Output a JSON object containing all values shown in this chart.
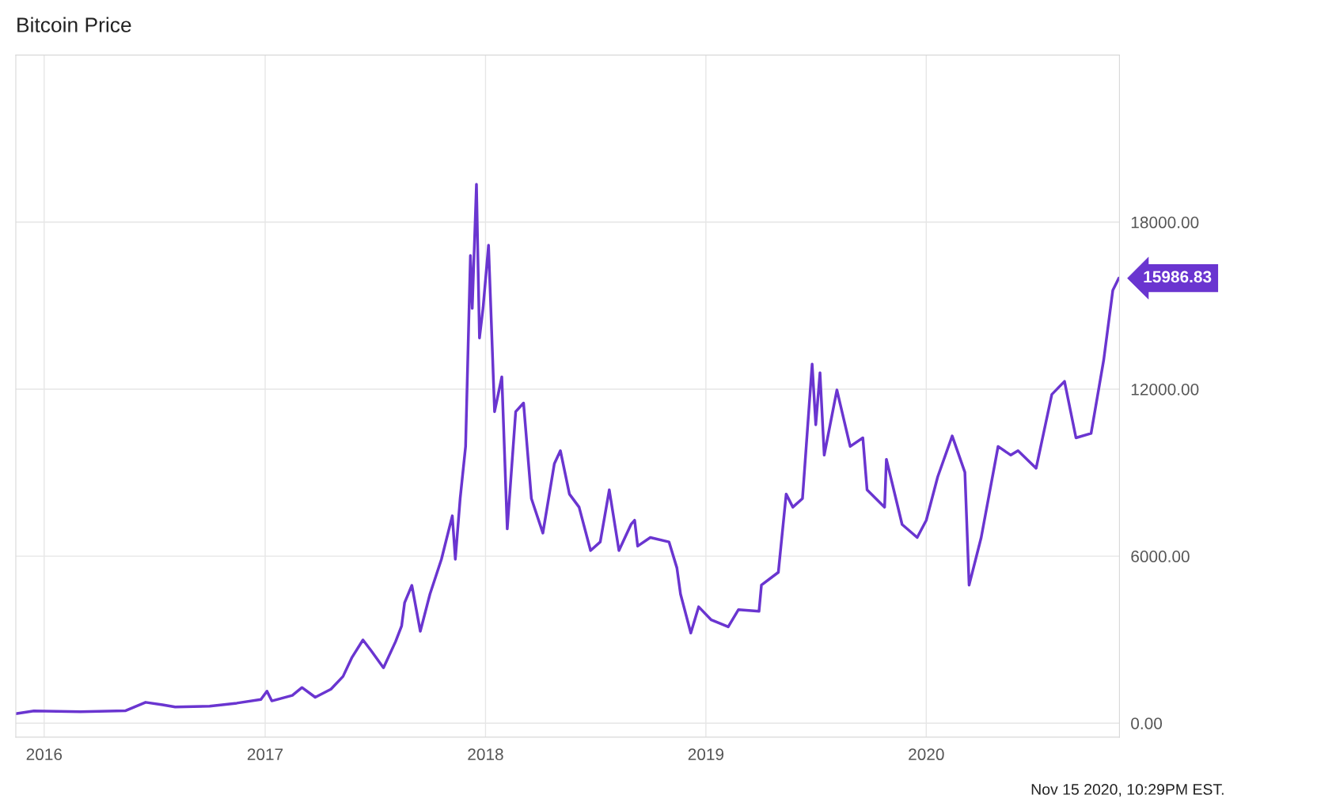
{
  "chart_data": {
    "type": "line",
    "title": "Bitcoin Price",
    "x": [
      "2015-11-15",
      "2015-12-15",
      "2016-03-01",
      "2016-05-15",
      "2016-06-17",
      "2016-07-15",
      "2016-08-05",
      "2016-10-01",
      "2016-11-15",
      "2016-12-25",
      "2017-01-04",
      "2017-01-12",
      "2017-02-15",
      "2017-03-03",
      "2017-03-25",
      "2017-04-20",
      "2017-05-10",
      "2017-05-25",
      "2017-06-12",
      "2017-06-25",
      "2017-07-16",
      "2017-08-05",
      "2017-08-15",
      "2017-08-20",
      "2017-09-01",
      "2017-09-15",
      "2017-10-01",
      "2017-10-20",
      "2017-11-07",
      "2017-11-12",
      "2017-11-20",
      "2017-11-29",
      "2017-12-07",
      "2017-12-10",
      "2017-12-17",
      "2017-12-22",
      "2017-12-28",
      "2018-01-06",
      "2018-01-16",
      "2018-01-28",
      "2018-02-06",
      "2018-02-20",
      "2018-03-05",
      "2018-03-18",
      "2018-04-06",
      "2018-04-25",
      "2018-05-05",
      "2018-05-20",
      "2018-06-05",
      "2018-06-24",
      "2018-07-10",
      "2018-07-25",
      "2018-08-10",
      "2018-08-30",
      "2018-09-05",
      "2018-09-10",
      "2018-10-01",
      "2018-11-01",
      "2018-11-14",
      "2018-11-20",
      "2018-12-07",
      "2018-12-20",
      "2019-01-10",
      "2019-02-07",
      "2019-02-24",
      "2019-03-30",
      "2019-04-03",
      "2019-05-01",
      "2019-05-14",
      "2019-05-25",
      "2019-06-10",
      "2019-06-26",
      "2019-07-02",
      "2019-07-09",
      "2019-07-16",
      "2019-08-06",
      "2019-08-28",
      "2019-09-18",
      "2019-09-25",
      "2019-10-24",
      "2019-10-27",
      "2019-11-22",
      "2019-12-17",
      "2020-01-01",
      "2020-01-20",
      "2020-02-13",
      "2020-03-05",
      "2020-03-12",
      "2020-04-01",
      "2020-04-29",
      "2020-05-20",
      "2020-06-01",
      "2020-07-01",
      "2020-07-27",
      "2020-08-17",
      "2020-09-05",
      "2020-09-30",
      "2020-10-21",
      "2020-11-05",
      "2020-11-15"
    ],
    "series": [
      {
        "color": "#6a35d0",
        "values": [
          340,
          440,
          410,
          450,
          750,
          660,
          580,
          610,
          720,
          850,
          1150,
          800,
          1000,
          1280,
          930,
          1220,
          1680,
          2370,
          2990,
          2620,
          1990,
          2930,
          3490,
          4330,
          4950,
          3300,
          4640,
          5890,
          7450,
          5890,
          8070,
          9940,
          16800,
          14900,
          19360,
          13840,
          14930,
          17170,
          11190,
          12440,
          6980,
          11190,
          11500,
          8070,
          6830,
          9320,
          9790,
          8230,
          7760,
          6200,
          6510,
          8380,
          6200,
          7140,
          7290,
          6360,
          6670,
          6510,
          5580,
          4640,
          3240,
          4180,
          3710,
          3460,
          4080,
          4020,
          4960,
          5420,
          8230,
          7760,
          8070,
          12900,
          10720,
          12590,
          9630,
          11970,
          9940,
          10250,
          8380,
          7760,
          9480,
          7140,
          6670,
          7290,
          8850,
          10320,
          9010,
          4960,
          6670,
          9940,
          9630,
          9790,
          9160,
          11810,
          12280,
          10250,
          10410,
          13060,
          15550,
          15986.83
        ]
      }
    ],
    "xlim": [
      "2015-11-15",
      "2020-11-16"
    ],
    "xticks": [
      {
        "value": "2016-01-01",
        "label": "2016"
      },
      {
        "value": "2017-01-01",
        "label": "2017"
      },
      {
        "value": "2018-01-01",
        "label": "2018"
      },
      {
        "value": "2019-01-01",
        "label": "2019"
      },
      {
        "value": "2020-01-01",
        "label": "2020"
      }
    ],
    "ylim": [
      -500,
      24000
    ],
    "yticks": [
      {
        "value": 0,
        "label": "0.00"
      },
      {
        "value": 6000,
        "label": "6000.00"
      },
      {
        "value": 12000,
        "label": "12000.00"
      },
      {
        "value": 18000,
        "label": "18000.00"
      }
    ],
    "grid": true,
    "annotations": [
      {
        "text": "15986.83",
        "x": "2020-11-15",
        "y": 15986.83
      },
      "Nov 15 2020, 10:29PM EST."
    ]
  }
}
